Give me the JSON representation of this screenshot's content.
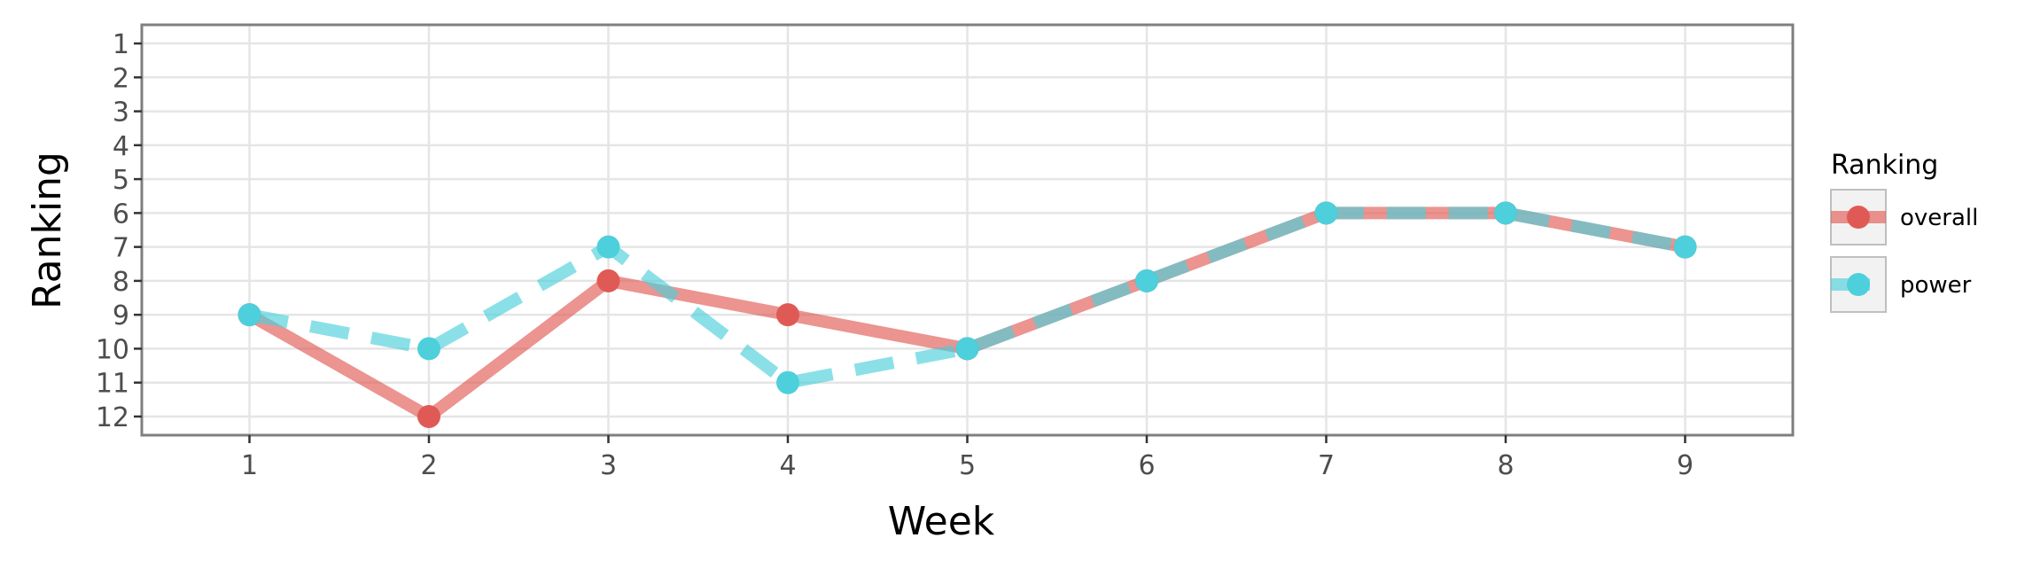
{
  "chart_data": {
    "type": "line",
    "title": "",
    "xlabel": "Week",
    "ylabel": "Ranking",
    "x": [
      1,
      2,
      3,
      4,
      5,
      6,
      7,
      8,
      9
    ],
    "x_ticks": [
      "1",
      "2",
      "3",
      "4",
      "5",
      "6",
      "7",
      "8",
      "9"
    ],
    "y_ticks": [
      "1",
      "2",
      "3",
      "4",
      "5",
      "6",
      "7",
      "8",
      "9",
      "10",
      "11",
      "12"
    ],
    "xlim": [
      0.4,
      9.6
    ],
    "ylim": [
      12.55,
      0.45
    ],
    "y_reversed": true,
    "grid": true,
    "legend": {
      "title": "Ranking",
      "position": "right"
    },
    "series": [
      {
        "name": "overall",
        "values": [
          9,
          12,
          8,
          9,
          10,
          8,
          6,
          6,
          7
        ],
        "color": "#E05A55",
        "line_style": "solid"
      },
      {
        "name": "power",
        "values": [
          9,
          10,
          7,
          11,
          10,
          8,
          6,
          6,
          7
        ],
        "color": "#4DD0DB",
        "line_style": "dashed"
      }
    ]
  }
}
